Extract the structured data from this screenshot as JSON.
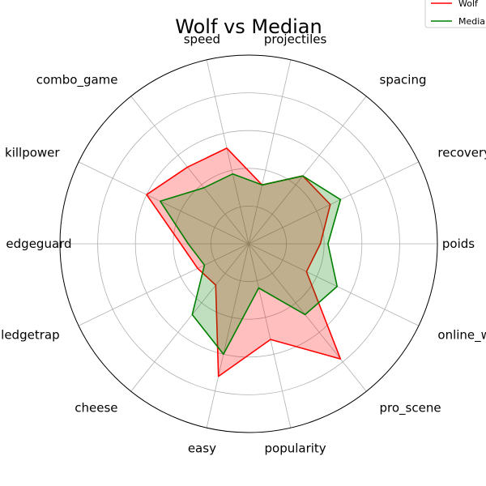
{
  "chart_data": {
    "type": "radar",
    "title": "Wolf vs Median",
    "axes": [
      "poids",
      "recovery",
      "spacing",
      "projectiles",
      "speed",
      "combo_game",
      "killpower",
      "edgeguard",
      "ledgetrap",
      "cheese",
      "easy",
      "popularity",
      "pro_scene",
      "online_winrate"
    ],
    "rlim": [
      0,
      5
    ],
    "grid": true,
    "legend_position": "top-right",
    "series": [
      {
        "name": "Wolf",
        "color": "#ff0000",
        "fill": "#ff0000",
        "values": [
          1.9,
          2.4,
          2.3,
          1.6,
          2.6,
          2.6,
          3.0,
          1.8,
          1.5,
          1.4,
          3.6,
          2.6,
          3.9,
          1.7
        ]
      },
      {
        "name": "Median",
        "color": "#008000",
        "fill": "#008000",
        "values": [
          2.1,
          2.7,
          2.3,
          1.6,
          1.9,
          1.9,
          2.6,
          1.6,
          1.3,
          2.4,
          3.0,
          1.2,
          2.4,
          2.6
        ]
      }
    ]
  }
}
